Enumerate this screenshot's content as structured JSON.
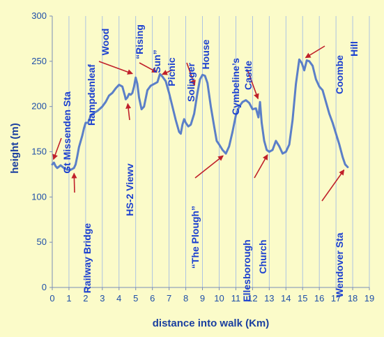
{
  "chart_data": {
    "type": "line",
    "title": "",
    "xlabel": "distance into walk (Km)",
    "ylabel": "height (m)",
    "xlim": [
      0,
      19
    ],
    "ylim": [
      0,
      300
    ],
    "xticks": [
      0,
      1,
      2,
      3,
      4,
      5,
      6,
      7,
      8,
      9,
      10,
      11,
      12,
      13,
      14,
      15,
      16,
      17,
      18,
      19
    ],
    "yticks": [
      0,
      50,
      100,
      150,
      200,
      250,
      300
    ],
    "grid": "vertical",
    "series": [
      {
        "color": "#5B7FC8",
        "points": [
          [
            0.0,
            136
          ],
          [
            0.1,
            138
          ],
          [
            0.2,
            134
          ],
          [
            0.3,
            132
          ],
          [
            0.5,
            135
          ],
          [
            0.7,
            132
          ],
          [
            0.9,
            130
          ],
          [
            1.1,
            130
          ],
          [
            1.3,
            132
          ],
          [
            1.4,
            136
          ],
          [
            1.5,
            145
          ],
          [
            1.6,
            155
          ],
          [
            1.8,
            168
          ],
          [
            1.9,
            176
          ],
          [
            2.0,
            182
          ],
          [
            2.15,
            182
          ],
          [
            2.3,
            190
          ],
          [
            2.5,
            193
          ],
          [
            2.7,
            195
          ],
          [
            3.0,
            200
          ],
          [
            3.2,
            205
          ],
          [
            3.4,
            212
          ],
          [
            3.6,
            215
          ],
          [
            3.8,
            220
          ],
          [
            4.0,
            224
          ],
          [
            4.2,
            222
          ],
          [
            4.35,
            212
          ],
          [
            4.4,
            208
          ],
          [
            4.5,
            210
          ],
          [
            4.6,
            214
          ],
          [
            4.7,
            213
          ],
          [
            4.8,
            215
          ],
          [
            4.9,
            222
          ],
          [
            5.0,
            232
          ],
          [
            5.1,
            225
          ],
          [
            5.2,
            210
          ],
          [
            5.35,
            197
          ],
          [
            5.5,
            200
          ],
          [
            5.7,
            218
          ],
          [
            5.9,
            223
          ],
          [
            6.1,
            225
          ],
          [
            6.3,
            227
          ],
          [
            6.45,
            236
          ],
          [
            6.6,
            233
          ],
          [
            6.8,
            228
          ],
          [
            7.0,
            215
          ],
          [
            7.2,
            200
          ],
          [
            7.4,
            185
          ],
          [
            7.6,
            172
          ],
          [
            7.7,
            170
          ],
          [
            7.8,
            180
          ],
          [
            7.9,
            186
          ],
          [
            8.0,
            182
          ],
          [
            8.15,
            178
          ],
          [
            8.3,
            180
          ],
          [
            8.5,
            192
          ],
          [
            8.7,
            215
          ],
          [
            8.85,
            230
          ],
          [
            9.0,
            235
          ],
          [
            9.15,
            234
          ],
          [
            9.3,
            226
          ],
          [
            9.5,
            200
          ],
          [
            9.7,
            178
          ],
          [
            9.85,
            162
          ],
          [
            10.0,
            158
          ],
          [
            10.2,
            152
          ],
          [
            10.4,
            148
          ],
          [
            10.6,
            156
          ],
          [
            10.8,
            172
          ],
          [
            11.0,
            190
          ],
          [
            11.2,
            200
          ],
          [
            11.4,
            205
          ],
          [
            11.6,
            207
          ],
          [
            11.8,
            204
          ],
          [
            12.0,
            197
          ],
          [
            12.2,
            198
          ],
          [
            12.35,
            188
          ],
          [
            12.45,
            205
          ],
          [
            12.55,
            182
          ],
          [
            12.7,
            162
          ],
          [
            12.85,
            152
          ],
          [
            13.0,
            150
          ],
          [
            13.2,
            152
          ],
          [
            13.4,
            162
          ],
          [
            13.6,
            156
          ],
          [
            13.8,
            148
          ],
          [
            14.0,
            150
          ],
          [
            14.2,
            158
          ],
          [
            14.4,
            185
          ],
          [
            14.6,
            225
          ],
          [
            14.8,
            252
          ],
          [
            14.95,
            248
          ],
          [
            15.1,
            240
          ],
          [
            15.25,
            251
          ],
          [
            15.4,
            250
          ],
          [
            15.6,
            245
          ],
          [
            15.8,
            230
          ],
          [
            16.0,
            222
          ],
          [
            16.2,
            218
          ],
          [
            16.4,
            205
          ],
          [
            16.6,
            192
          ],
          [
            16.8,
            182
          ],
          [
            17.0,
            170
          ],
          [
            17.2,
            158
          ],
          [
            17.4,
            144
          ],
          [
            17.55,
            136
          ],
          [
            17.7,
            133
          ]
        ]
      }
    ],
    "annotations": [
      {
        "text": "Gt Missenden Sta",
        "arrow": [
          0.0,
          138
        ]
      },
      {
        "text": "Railway Bridge",
        "arrow": [
          1.3,
          130
        ]
      },
      {
        "text": "Hampdenleaf",
        "arrow": null
      },
      {
        "text": "Wood",
        "arrow": null
      },
      {
        "text": "HS-2 Viewv",
        "arrow": [
          4.5,
          207
        ]
      },
      {
        "text": "“Rising",
        "arrow": [
          5.0,
          235
        ]
      },
      {
        "text": "Sun”",
        "arrow": [
          6.45,
          236
        ]
      },
      {
        "text": "Picnic",
        "arrow": [
          6.4,
          234
        ]
      },
      {
        "text": "Solinger",
        "arrow": [
          8.6,
          220
        ]
      },
      {
        "text": "House",
        "arrow": null
      },
      {
        "text": "“The Plough”",
        "arrow": [
          10.4,
          148
        ]
      },
      {
        "text": "Cymbeline’s",
        "arrow": [
          12.4,
          205
        ]
      },
      {
        "text": "Castle",
        "arrow": null
      },
      {
        "text": "Ellesborough",
        "arrow": [
          13.0,
          150
        ]
      },
      {
        "text": "Church",
        "arrow": null
      },
      {
        "text": "Coombe",
        "arrow": [
          15.0,
          252
        ]
      },
      {
        "text": "Hill",
        "arrow": null
      },
      {
        "text": "Wendover Sta",
        "arrow": [
          17.6,
          133
        ]
      }
    ]
  }
}
